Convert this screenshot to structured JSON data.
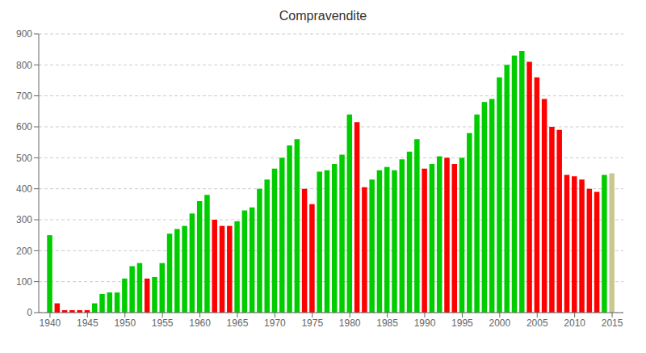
{
  "chart_data": {
    "type": "bar",
    "title": "Compravendite",
    "x": [
      1940,
      1941,
      1942,
      1943,
      1944,
      1945,
      1946,
      1947,
      1948,
      1949,
      1950,
      1951,
      1952,
      1953,
      1954,
      1955,
      1956,
      1957,
      1958,
      1959,
      1960,
      1961,
      1962,
      1963,
      1964,
      1965,
      1966,
      1967,
      1968,
      1969,
      1970,
      1971,
      1972,
      1973,
      1974,
      1975,
      1976,
      1977,
      1978,
      1979,
      1980,
      1981,
      1982,
      1983,
      1984,
      1985,
      1986,
      1987,
      1988,
      1989,
      1990,
      1991,
      1992,
      1993,
      1994,
      1995,
      1996,
      1997,
      1998,
      1999,
      2000,
      2001,
      2002,
      2003,
      2004,
      2005,
      2006,
      2007,
      2008,
      2009,
      2010,
      2011,
      2012,
      2013,
      2014,
      2015
    ],
    "values": [
      250,
      30,
      8,
      8,
      8,
      8,
      30,
      60,
      65,
      65,
      110,
      150,
      160,
      110,
      115,
      160,
      255,
      270,
      280,
      320,
      360,
      380,
      300,
      280,
      280,
      295,
      330,
      340,
      400,
      430,
      465,
      500,
      540,
      560,
      400,
      350,
      455,
      460,
      480,
      510,
      640,
      615,
      405,
      430,
      460,
      470,
      460,
      495,
      520,
      560,
      465,
      480,
      505,
      500,
      480,
      500,
      580,
      640,
      680,
      690,
      760,
      800,
      830,
      845,
      810,
      760,
      690,
      600,
      590,
      445,
      440,
      430,
      400,
      390,
      445,
      450
    ],
    "colors": [
      "#00cc00",
      "#ff0000",
      "#ff0000",
      "#ff0000",
      "#ff0000",
      "#ff0000",
      "#00cc00",
      "#00cc00",
      "#00cc00",
      "#00cc00",
      "#00cc00",
      "#00cc00",
      "#00cc00",
      "#ff0000",
      "#00cc00",
      "#00cc00",
      "#00cc00",
      "#00cc00",
      "#00cc00",
      "#00cc00",
      "#00cc00",
      "#00cc00",
      "#ff0000",
      "#ff0000",
      "#ff0000",
      "#00cc00",
      "#00cc00",
      "#00cc00",
      "#00cc00",
      "#00cc00",
      "#00cc00",
      "#00cc00",
      "#00cc00",
      "#00cc00",
      "#ff0000",
      "#ff0000",
      "#00cc00",
      "#00cc00",
      "#00cc00",
      "#00cc00",
      "#00cc00",
      "#ff0000",
      "#ff0000",
      "#00cc00",
      "#00cc00",
      "#00cc00",
      "#00cc00",
      "#00cc00",
      "#00cc00",
      "#00cc00",
      "#ff0000",
      "#00cc00",
      "#00cc00",
      "#ff0000",
      "#ff0000",
      "#00cc00",
      "#00cc00",
      "#00cc00",
      "#00cc00",
      "#00cc00",
      "#00cc00",
      "#00cc00",
      "#00cc00",
      "#00cc00",
      "#ff0000",
      "#ff0000",
      "#ff0000",
      "#ff0000",
      "#ff0000",
      "#ff0000",
      "#ff0000",
      "#ff0000",
      "#ff0000",
      "#ff0000",
      "#00cc00",
      "#c8c890"
    ],
    "xlim": [
      1938.5,
      2016.5
    ],
    "xticks": [
      1940,
      1945,
      1950,
      1955,
      1960,
      1965,
      1970,
      1975,
      1980,
      1985,
      1990,
      1995,
      2000,
      2005,
      2010,
      2015
    ],
    "ylim": [
      0,
      900
    ],
    "yticks": [
      0,
      100,
      200,
      300,
      400,
      500,
      600,
      700,
      800,
      900
    ],
    "grid": true
  }
}
